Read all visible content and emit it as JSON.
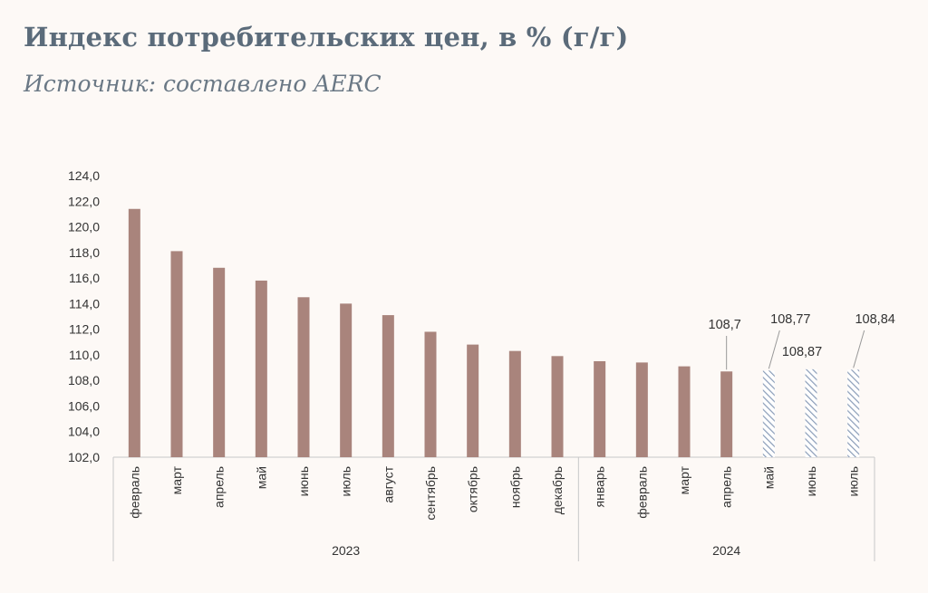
{
  "header": {
    "title": "Индекс потребительских цен, в % (г/г)",
    "subtitle": "Источник: составлено AERC"
  },
  "colors": {
    "actual_bar": "#a9847c",
    "forecast_hatch": "#8b9db8",
    "axis": "#c8c8c8",
    "text": "#333333"
  },
  "chart_data": {
    "type": "bar",
    "title": "Индекс потребительских цен, в % (г/г)",
    "subtitle": "Источник: составлено AERC",
    "xlabel": "",
    "ylabel": "",
    "ylim": [
      102,
      124
    ],
    "yticks": [
      "102,0",
      "104,0",
      "106,0",
      "108,0",
      "110,0",
      "112,0",
      "114,0",
      "116,0",
      "118,0",
      "120,0",
      "122,0",
      "124,0"
    ],
    "grid": false,
    "legend": "none",
    "groups": [
      {
        "label": "2023",
        "categories": [
          "февраль",
          "март",
          "апрель",
          "май",
          "июнь",
          "июль",
          "август",
          "сентябрь",
          "октябрь",
          "ноябрь",
          "декабрь"
        ]
      },
      {
        "label": "2024",
        "categories": [
          "январь",
          "февраль",
          "март",
          "апрель",
          "май",
          "июнь",
          "июль"
        ]
      }
    ],
    "bars": [
      {
        "category": "февраль",
        "year": "2023",
        "value": 121.4,
        "kind": "actual"
      },
      {
        "category": "март",
        "year": "2023",
        "value": 118.1,
        "kind": "actual"
      },
      {
        "category": "апрель",
        "year": "2023",
        "value": 116.8,
        "kind": "actual"
      },
      {
        "category": "май",
        "year": "2023",
        "value": 115.8,
        "kind": "actual"
      },
      {
        "category": "июнь",
        "year": "2023",
        "value": 114.5,
        "kind": "actual"
      },
      {
        "category": "июль",
        "year": "2023",
        "value": 114.0,
        "kind": "actual"
      },
      {
        "category": "август",
        "year": "2023",
        "value": 113.1,
        "kind": "actual"
      },
      {
        "category": "сентябрь",
        "year": "2023",
        "value": 111.8,
        "kind": "actual"
      },
      {
        "category": "октябрь",
        "year": "2023",
        "value": 110.8,
        "kind": "actual"
      },
      {
        "category": "ноябрь",
        "year": "2023",
        "value": 110.3,
        "kind": "actual"
      },
      {
        "category": "декабрь",
        "year": "2023",
        "value": 109.9,
        "kind": "actual"
      },
      {
        "category": "январь",
        "year": "2024",
        "value": 109.5,
        "kind": "actual"
      },
      {
        "category": "февраль",
        "year": "2024",
        "value": 109.4,
        "kind": "actual"
      },
      {
        "category": "март",
        "year": "2024",
        "value": 109.1,
        "kind": "actual"
      },
      {
        "category": "апрель",
        "year": "2024",
        "value": 108.7,
        "kind": "actual",
        "label": "108,7"
      },
      {
        "category": "май",
        "year": "2024",
        "value": 108.77,
        "kind": "forecast",
        "label": "108,77"
      },
      {
        "category": "июнь",
        "year": "2024",
        "value": 108.87,
        "kind": "forecast",
        "label": "108,87"
      },
      {
        "category": "июль",
        "year": "2024",
        "value": 108.84,
        "kind": "forecast",
        "label": "108,84"
      }
    ]
  }
}
